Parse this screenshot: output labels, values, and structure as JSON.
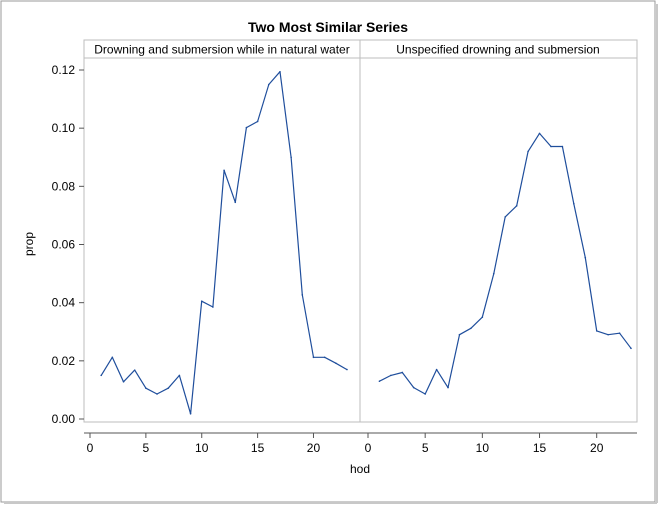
{
  "chart_data": {
    "type": "line",
    "title": "Two Most Similar Series",
    "xlabel": "hod",
    "ylabel": "prop",
    "ylim": [
      0,
      0.12
    ],
    "yticks": [
      "0.00",
      "0.02",
      "0.04",
      "0.06",
      "0.08",
      "0.10",
      "0.12"
    ],
    "line_color": "#1f4e9c",
    "panels": [
      {
        "label": "Drowning and submersion while in natural water",
        "xlim": [
          0,
          23
        ],
        "xticks": [
          "0",
          "5",
          "10",
          "15",
          "20"
        ],
        "x": [
          1,
          2,
          3,
          4,
          5,
          6,
          7,
          8,
          9,
          10,
          11,
          12,
          13,
          14,
          15,
          16,
          17,
          18,
          19,
          20,
          21,
          22,
          23
        ],
        "y": [
          0.015,
          0.0212,
          0.0128,
          0.0168,
          0.0106,
          0.0086,
          0.0106,
          0.015,
          0.0018,
          0.0405,
          0.0385,
          0.0855,
          0.0745,
          0.1002,
          0.1023,
          0.115,
          0.1194,
          0.09,
          0.0427,
          0.0212,
          0.0212,
          0.0192,
          0.017
        ]
      },
      {
        "label": "Unspecified drowning and submersion",
        "xlim": [
          0,
          23
        ],
        "xticks": [
          "0",
          "5",
          "10",
          "15",
          "20"
        ],
        "x": [
          1,
          2,
          3,
          4,
          5,
          6,
          7,
          8,
          9,
          10,
          11,
          12,
          13,
          14,
          15,
          16,
          17,
          18,
          19,
          20,
          21,
          22,
          23
        ],
        "y": [
          0.013,
          0.015,
          0.016,
          0.0108,
          0.0086,
          0.017,
          0.0108,
          0.029,
          0.0312,
          0.035,
          0.05,
          0.0695,
          0.0733,
          0.092,
          0.0982,
          0.0937,
          0.0937,
          0.074,
          0.0555,
          0.0303,
          0.029,
          0.0295,
          0.0243
        ]
      }
    ]
  }
}
